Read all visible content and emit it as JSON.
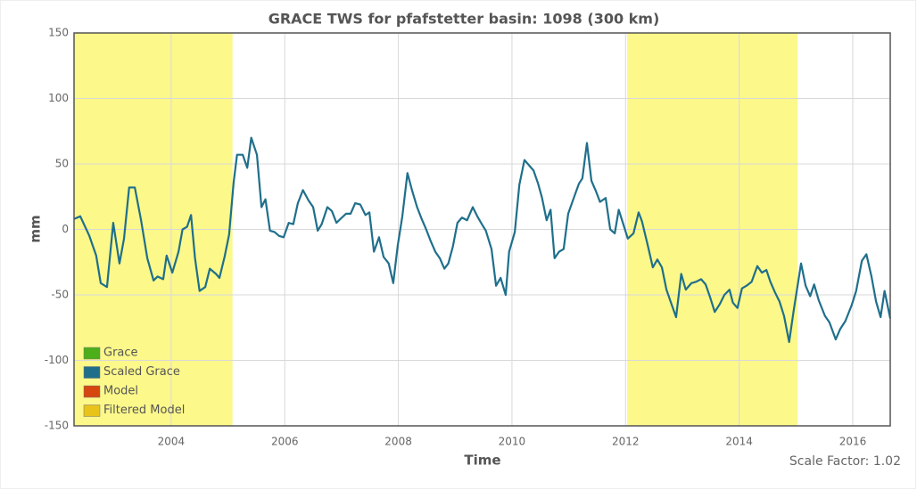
{
  "chart_data": {
    "type": "line",
    "title": "GRACE TWS for pfafstetter basin: 1098 (300 km)",
    "x_label": "Time",
    "y_label": "mm",
    "footer_text": "Scale Factor: 1.02",
    "xlim": [
      2002.29,
      2016.66
    ],
    "xticks": [
      2004,
      2006,
      2008,
      2010,
      2012,
      2014,
      2016
    ],
    "ylim": [
      -150,
      150
    ],
    "yticks": [
      -150,
      -100,
      -50,
      0,
      50,
      100,
      150
    ],
    "grid": true,
    "legend": [
      {
        "name": "Grace",
        "color": "#4caf1a"
      },
      {
        "name": "Scaled Grace",
        "color": "#1f6f8b"
      },
      {
        "name": "Model",
        "color": "#d5470f"
      },
      {
        "name": "Filtered Model",
        "color": "#e8c31a"
      }
    ],
    "bands": [
      {
        "from": 2002.29,
        "to": 2005.08,
        "color": "#fcf88a"
      },
      {
        "from": 2012.03,
        "to": 2015.03,
        "color": "#fcf88a"
      }
    ],
    "series": [
      {
        "name": "Scaled Grace",
        "color": "#1f6f8b",
        "x": [
          2002.29,
          2002.4,
          2002.56,
          2002.68,
          2002.76,
          2002.87,
          2002.98,
          2003.09,
          2003.17,
          2003.26,
          2003.36,
          2003.47,
          2003.58,
          2003.69,
          2003.76,
          2003.86,
          2003.92,
          2004.02,
          2004.13,
          2004.2,
          2004.28,
          2004.35,
          2004.42,
          2004.5,
          2004.6,
          2004.68,
          2004.79,
          2004.85,
          2004.94,
          2005.02,
          2005.1,
          2005.16,
          2005.26,
          2005.34,
          2005.41,
          2005.51,
          2005.59,
          2005.66,
          2005.74,
          2005.82,
          2005.9,
          2005.98,
          2006.07,
          2006.15,
          2006.23,
          2006.32,
          2006.42,
          2006.5,
          2006.58,
          2006.65,
          2006.75,
          2006.83,
          2006.91,
          2006.98,
          2007.08,
          2007.16,
          2007.24,
          2007.33,
          2007.42,
          2007.49,
          2007.57,
          2007.66,
          2007.74,
          2007.83,
          2007.91,
          2007.99,
          2008.07,
          2008.16,
          2008.24,
          2008.33,
          2008.41,
          2008.49,
          2008.57,
          2008.65,
          2008.73,
          2008.81,
          2008.88,
          2008.96,
          2009.04,
          2009.12,
          2009.21,
          2009.31,
          2009.39,
          2009.47,
          2009.54,
          2009.64,
          2009.72,
          2009.8,
          2009.89,
          2009.95,
          2010.05,
          2010.13,
          2010.22,
          2010.3,
          2010.38,
          2010.46,
          2010.53,
          2010.61,
          2010.68,
          2010.75,
          2010.83,
          2010.91,
          2010.99,
          2011.08,
          2011.18,
          2011.24,
          2011.32,
          2011.4,
          2011.48,
          2011.55,
          2011.65,
          2011.73,
          2011.81,
          2011.88,
          2011.96,
          2012.04,
          2012.14,
          2012.23,
          2012.29,
          2012.39,
          2012.48,
          2012.56,
          2012.64,
          2012.72,
          2012.8,
          2012.89,
          2012.98,
          2013.06,
          2013.16,
          2013.24,
          2013.33,
          2013.41,
          2013.49,
          2013.57,
          2013.66,
          2013.74,
          2013.83,
          2013.89,
          2013.97,
          2014.05,
          2014.13,
          2014.22,
          2014.32,
          2014.4,
          2014.48,
          2014.55,
          2014.63,
          2014.71,
          2014.79,
          2014.88,
          2014.96,
          2015.09,
          2015.17,
          2015.25,
          2015.32,
          2015.4,
          2015.51,
          2015.59,
          2015.7,
          2015.78,
          2015.87,
          2015.98,
          2016.06,
          2016.16,
          2016.24,
          2016.33,
          2016.41,
          2016.49,
          2016.56,
          2016.66
        ],
        "values": [
          8,
          10,
          -5,
          -20,
          -41,
          -44,
          5,
          -26,
          -7,
          32,
          32,
          7,
          -22,
          -39,
          -36,
          -38,
          -20,
          -33,
          -17,
          0,
          2,
          11,
          -22,
          -47,
          -44,
          -30,
          -34,
          -37,
          -21,
          -4,
          36,
          57,
          57,
          47,
          70,
          57,
          17,
          23,
          -1,
          -2,
          -5,
          -6,
          5,
          4,
          20,
          30,
          22,
          17,
          -1,
          4,
          17,
          14,
          5,
          8,
          12,
          12,
          20,
          19,
          11,
          13,
          -17,
          -6,
          -21,
          -26,
          -41,
          -12,
          10,
          43,
          30,
          17,
          8,
          0,
          -9,
          -17,
          -22,
          -30,
          -26,
          -13,
          5,
          9,
          7,
          17,
          10,
          4,
          -1,
          -15,
          -43,
          -37,
          -50,
          -17,
          -2,
          34,
          53,
          49,
          45,
          35,
          24,
          7,
          15,
          -22,
          -17,
          -15,
          12,
          23,
          35,
          39,
          66,
          37,
          29,
          21,
          24,
          0,
          -3,
          15,
          4,
          -7,
          -3,
          13,
          6,
          -12,
          -29,
          -23,
          -29,
          -46,
          -56,
          -67,
          -34,
          -46,
          -41,
          -40,
          -38,
          -42,
          -52,
          -63,
          -57,
          -50,
          -46,
          -56,
          -60,
          -45,
          -43,
          -40,
          -28,
          -33,
          -31,
          -40,
          -48,
          -55,
          -66,
          -86,
          -62,
          -26,
          -43,
          -51,
          -42,
          -54,
          -66,
          -71,
          -84,
          -76,
          -70,
          -58,
          -47,
          -24,
          -19,
          -36,
          -55,
          -67,
          -47,
          -68
        ]
      }
    ]
  }
}
